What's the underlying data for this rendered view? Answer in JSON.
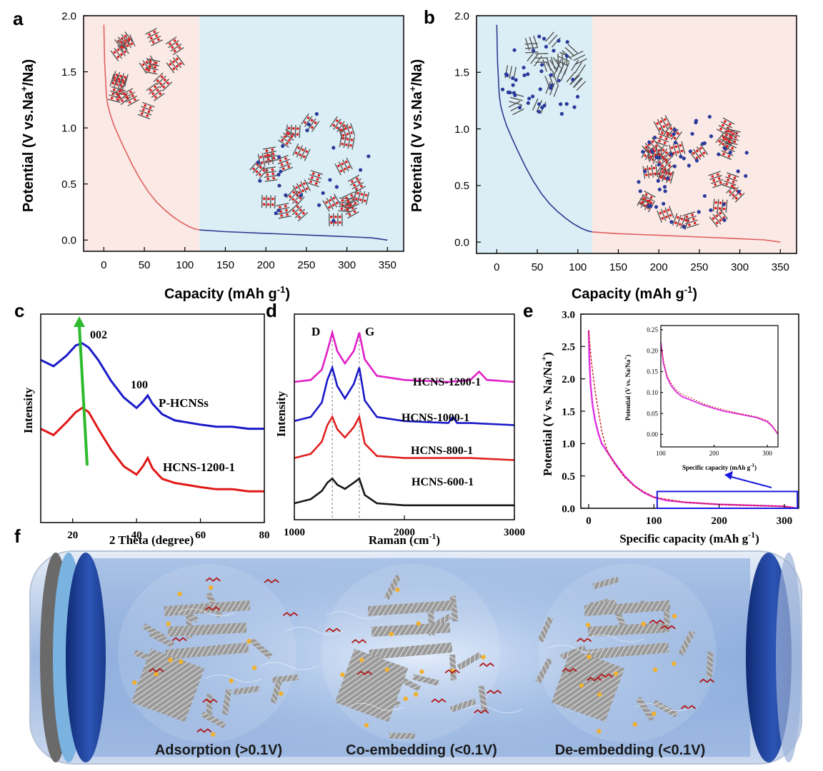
{
  "panels": {
    "a": "a",
    "b": "b",
    "c": "c",
    "d": "d",
    "e": "e",
    "f": "f"
  },
  "chart_data": [
    {
      "id": "a",
      "type": "line",
      "xlabel": "Capacity (mAh g",
      "xlabel_sup": "-1",
      "xlabel_close": ")",
      "ylabel": "Potential (V vs.Na",
      "ylabel_sup": "+",
      "ylabel_close": "/Na)",
      "xlim": [
        -25,
        370
      ],
      "ylim": [
        -0.1,
        2.0
      ],
      "xticks": [
        0,
        50,
        100,
        150,
        200,
        250,
        300,
        350
      ],
      "yticks": [
        0.0,
        0.5,
        1.0,
        1.5,
        2.0
      ],
      "ytick_labels": [
        "0.0",
        "0.5",
        "1.0",
        "1.5",
        "2.0"
      ],
      "regions": [
        {
          "from": -25,
          "to": 118,
          "color": "#fbe9e6"
        },
        {
          "from": 118,
          "to": 370,
          "color": "#dbeef5"
        }
      ],
      "series": [
        {
          "color": "#e06060",
          "x": [
            0,
            0.5,
            1,
            2,
            3,
            5,
            8,
            12,
            18,
            25,
            35,
            45,
            55,
            65,
            75,
            85,
            95,
            105,
            112,
            118
          ],
          "y": [
            1.92,
            1.75,
            1.58,
            1.45,
            1.3,
            1.2,
            1.12,
            1.03,
            0.93,
            0.82,
            0.67,
            0.54,
            0.43,
            0.34,
            0.27,
            0.21,
            0.16,
            0.12,
            0.1,
            0.09
          ]
        },
        {
          "color": "#2b3a8f",
          "x": [
            118,
            150,
            200,
            250,
            300,
            330,
            350
          ],
          "y": [
            0.09,
            0.075,
            0.06,
            0.045,
            0.03,
            0.02,
            0.0
          ]
        }
      ]
    },
    {
      "id": "b",
      "type": "line",
      "xlabel": "Capacity (mAh g",
      "xlabel_sup": "-1",
      "xlabel_close": ")",
      "ylabel": "Potential (V vs.Na",
      "ylabel_sup": "+",
      "ylabel_close": "/Na)",
      "xlim": [
        -25,
        370
      ],
      "ylim": [
        -0.1,
        2.0
      ],
      "xticks": [
        0,
        50,
        100,
        150,
        200,
        250,
        300,
        350
      ],
      "yticks": [
        0.0,
        0.5,
        1.0,
        1.5,
        2.0
      ],
      "ytick_labels": [
        "0.0",
        "0.5",
        "1.0",
        "1.5",
        "2.0"
      ],
      "regions": [
        {
          "from": -25,
          "to": 118,
          "color": "#dbeef5"
        },
        {
          "from": 118,
          "to": 370,
          "color": "#fbe9e6"
        }
      ],
      "series": [
        {
          "color": "#2b3a8f",
          "x": [
            0,
            0.5,
            1,
            2,
            3,
            5,
            8,
            12,
            18,
            25,
            35,
            45,
            55,
            65,
            75,
            85,
            95,
            105,
            112,
            118
          ],
          "y": [
            1.92,
            1.75,
            1.58,
            1.45,
            1.3,
            1.2,
            1.12,
            1.03,
            0.93,
            0.82,
            0.67,
            0.54,
            0.43,
            0.34,
            0.27,
            0.21,
            0.16,
            0.12,
            0.1,
            0.09
          ]
        },
        {
          "color": "#e06060",
          "x": [
            118,
            150,
            200,
            250,
            300,
            330,
            350
          ],
          "y": [
            0.09,
            0.075,
            0.06,
            0.045,
            0.03,
            0.02,
            0.0
          ]
        }
      ]
    },
    {
      "id": "c",
      "type": "line",
      "xlabel": "2 Theta (degree)",
      "ylabel": "Intensity",
      "xlim": [
        10,
        80
      ],
      "ylim": [
        0,
        1.0
      ],
      "xticks": [
        20,
        40,
        60,
        80
      ],
      "annotations": {
        "peak1": "002",
        "peak2": "100"
      },
      "series": [
        {
          "name": "P-HCNSs",
          "color": "#1a1ac8",
          "x": [
            10,
            14,
            18,
            21,
            23,
            25,
            28,
            32,
            36,
            40,
            42,
            43.5,
            45,
            48,
            52,
            56,
            60,
            65,
            70,
            75,
            80
          ],
          "y": [
            0.78,
            0.75,
            0.8,
            0.85,
            0.86,
            0.84,
            0.78,
            0.68,
            0.6,
            0.55,
            0.58,
            0.61,
            0.57,
            0.52,
            0.49,
            0.48,
            0.47,
            0.46,
            0.46,
            0.45,
            0.45
          ]
        },
        {
          "name": "HCNS-1200-1",
          "color": "#e01818",
          "x": [
            10,
            14,
            18,
            21,
            23,
            25,
            28,
            32,
            36,
            40,
            42,
            43.5,
            45,
            48,
            52,
            56,
            60,
            65,
            70,
            75,
            80
          ],
          "y": [
            0.45,
            0.42,
            0.48,
            0.53,
            0.55,
            0.53,
            0.45,
            0.35,
            0.27,
            0.23,
            0.27,
            0.31,
            0.26,
            0.21,
            0.19,
            0.18,
            0.17,
            0.16,
            0.16,
            0.15,
            0.15
          ]
        }
      ]
    },
    {
      "id": "d",
      "type": "line",
      "xlabel": "Raman (cm",
      "xlabel_sup": "-1",
      "xlabel_close": ")",
      "ylabel": "Intensity",
      "xlim": [
        1000,
        3000
      ],
      "ylim": [
        0,
        1.0
      ],
      "xticks": [
        1000,
        2000,
        3000
      ],
      "annotations": {
        "D": "D",
        "G": "G",
        "D_pos": 1345,
        "G_pos": 1590
      },
      "series": [
        {
          "name": "HCNS-1200-1",
          "color": "#e020c8",
          "x": [
            1000,
            1150,
            1250,
            1300,
            1345,
            1390,
            1460,
            1540,
            1590,
            1640,
            1750,
            2000,
            2400,
            2600,
            2680,
            2750,
            3000
          ],
          "y": [
            0.67,
            0.68,
            0.73,
            0.82,
            0.91,
            0.82,
            0.76,
            0.82,
            0.91,
            0.78,
            0.7,
            0.68,
            0.67,
            0.68,
            0.72,
            0.68,
            0.67
          ]
        },
        {
          "name": "HCNS-1000-1",
          "color": "#1818c8",
          "x": [
            1000,
            1150,
            1250,
            1300,
            1345,
            1390,
            1460,
            1540,
            1590,
            1640,
            1750,
            2000,
            2400,
            2440,
            2480,
            2600,
            3000
          ],
          "y": [
            0.48,
            0.5,
            0.57,
            0.68,
            0.74,
            0.65,
            0.59,
            0.66,
            0.74,
            0.58,
            0.5,
            0.48,
            0.47,
            0.5,
            0.47,
            0.47,
            0.46
          ]
        },
        {
          "name": "HCNS-800-1",
          "color": "#e02020",
          "x": [
            1000,
            1150,
            1250,
            1300,
            1345,
            1390,
            1460,
            1540,
            1590,
            1640,
            1750,
            2000,
            2400,
            2600,
            3000
          ],
          "y": [
            0.3,
            0.32,
            0.38,
            0.46,
            0.5,
            0.44,
            0.4,
            0.45,
            0.5,
            0.37,
            0.31,
            0.3,
            0.3,
            0.3,
            0.29
          ]
        },
        {
          "name": "HCNS-600-1",
          "color": "#181818",
          "x": [
            1000,
            1150,
            1250,
            1300,
            1345,
            1390,
            1460,
            1540,
            1590,
            1640,
            1750,
            2000,
            2400,
            2600,
            3000
          ],
          "y": [
            0.08,
            0.1,
            0.14,
            0.18,
            0.2,
            0.17,
            0.15,
            0.18,
            0.2,
            0.12,
            0.08,
            0.07,
            0.07,
            0.07,
            0.07
          ]
        }
      ]
    },
    {
      "id": "e",
      "type": "line",
      "xlabel": "Specific capacity (mAh g",
      "xlabel_sup": "-1",
      "xlabel_close": ")",
      "ylabel": "Potential (V vs. Na/Na",
      "ylabel_sup": "+",
      "ylabel_close": ")",
      "xlim": [
        -12,
        322
      ],
      "ylim": [
        0,
        3.0
      ],
      "xticks": [
        0,
        100,
        200,
        300
      ],
      "yticks": [
        0.0,
        0.5,
        1.0,
        1.5,
        2.0,
        2.5,
        3.0
      ],
      "ytick_labels": [
        "0.0",
        "0.5",
        "1.0",
        "1.5",
        "2.0",
        "2.5",
        "3.0"
      ],
      "series": [
        {
          "color": "#e030e0",
          "style": "solid",
          "x": [
            0,
            1,
            3,
            6,
            10,
            15,
            20,
            30,
            40,
            55,
            70,
            85,
            100,
            120,
            150,
            200,
            250,
            300,
            320
          ],
          "y": [
            2.75,
            2.3,
            1.9,
            1.6,
            1.35,
            1.15,
            1.0,
            0.85,
            0.7,
            0.5,
            0.35,
            0.24,
            0.17,
            0.12,
            0.09,
            0.06,
            0.045,
            0.03,
            0.0
          ]
        },
        {
          "color": "#c81818",
          "style": "dashed",
          "x": [
            0,
            2,
            5,
            10,
            15,
            20,
            25,
            30,
            40,
            55,
            70,
            100,
            150,
            200,
            300,
            320
          ],
          "y": [
            2.75,
            2.5,
            2.2,
            1.8,
            1.5,
            1.2,
            1.0,
            0.85,
            0.68,
            0.48,
            0.34,
            0.17,
            0.09,
            0.06,
            0.03,
            0.0
          ]
        }
      ],
      "zoom_box": {
        "x": [
          105,
          320
        ],
        "y": [
          0,
          0.26
        ]
      },
      "inset": {
        "xlabel": "Specific capacity (mAh g",
        "xlabel_sup": "-1",
        "xlabel_close": ")",
        "ylabel": "Potential (V vs. Na/Na",
        "ylabel_sup": "+",
        "ylabel_close": ")",
        "xlim": [
          100,
          320
        ],
        "ylim": [
          -0.03,
          0.26
        ],
        "xticks": [
          100,
          200,
          300
        ],
        "yticks": [
          0.0,
          0.05,
          0.1,
          0.15,
          0.2,
          0.25
        ],
        "ytick_labels": [
          "0.00",
          "0.05",
          "0.10",
          "0.15",
          "0.20",
          "0.25"
        ],
        "series": [
          {
            "color": "#e030e0",
            "style": "solid",
            "x": [
              100,
              105,
              112,
              120,
              130,
              140,
              160,
              180,
              200,
              220,
              240,
              260,
              280,
              300,
              310,
              320
            ],
            "y": [
              0.22,
              0.17,
              0.135,
              0.115,
              0.1,
              0.09,
              0.08,
              0.07,
              0.062,
              0.055,
              0.05,
              0.045,
              0.04,
              0.03,
              0.018,
              0.0
            ]
          },
          {
            "color": "#c81818",
            "style": "dashed",
            "x": [
              100,
              105,
              112,
              120,
              130,
              140,
              160,
              180,
              200,
              220,
              240,
              260,
              280,
              300,
              310,
              320
            ],
            "y": [
              0.215,
              0.175,
              0.14,
              0.12,
              0.105,
              0.095,
              0.085,
              0.073,
              0.065,
              0.058,
              0.052,
              0.047,
              0.042,
              0.033,
              0.02,
              0.0
            ]
          }
        ]
      }
    }
  ],
  "schematic": {
    "labels": [
      "Adsorption (>0.1V)",
      "Co-embedding (<0.1V)",
      "De-embedding (<0.1V)"
    ],
    "colors": {
      "tube": "#c8d4e6",
      "background": "#8fb0dc",
      "electrode": "#1e3c8c",
      "sheet": "#7a7a7a",
      "ion": "#f0b030",
      "molecule": "#b01818"
    }
  }
}
